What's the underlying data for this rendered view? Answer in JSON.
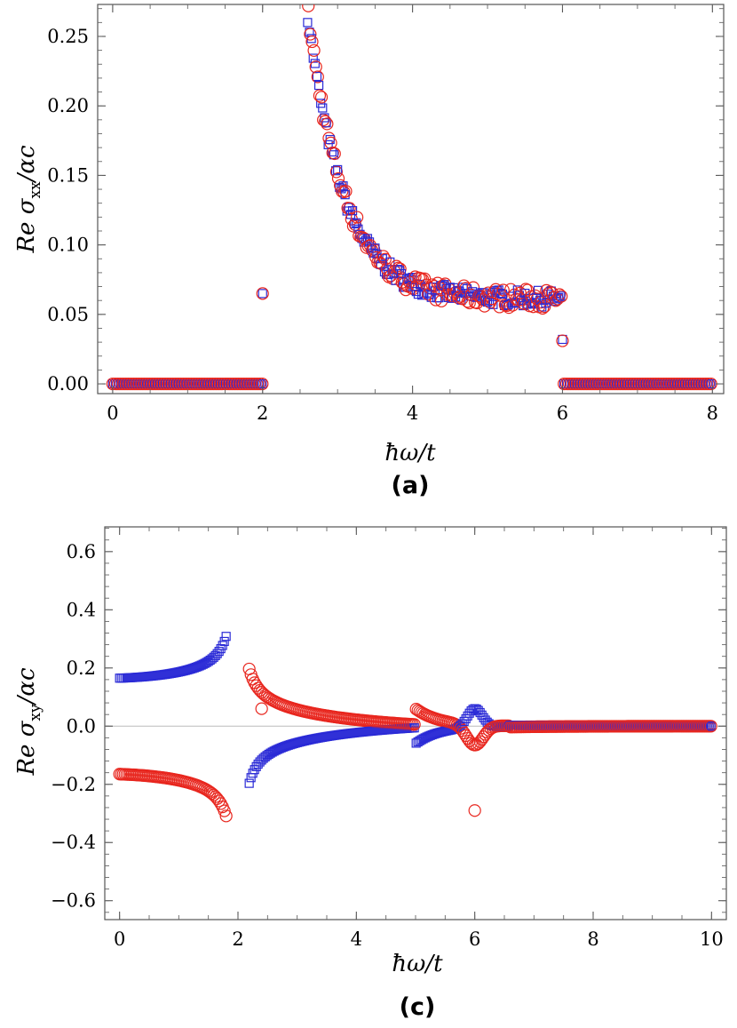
{
  "chart_data": [
    {
      "type": "scatter",
      "caption": "(a)",
      "title": "",
      "xlabel": "ħω/t",
      "ylabel_main": "Re σ",
      "ylabel_sub": "xx",
      "ylabel_tail": "/αc",
      "xlim": [
        -0.2,
        8.15
      ],
      "ylim": [
        -0.007,
        0.273
      ],
      "x_ticks": [
        "0",
        "2",
        "4",
        "6",
        "8"
      ],
      "y_ticks": [
        "0.00",
        "0.05",
        "0.10",
        "0.15",
        "0.20",
        "0.25"
      ],
      "series": [
        {
          "name": "blue squares",
          "marker": "square",
          "color": "#2a2ad6"
        },
        {
          "name": "red circles",
          "marker": "circle",
          "color": "#e8261e"
        }
      ],
      "features": {
        "band_lo": 2,
        "band_hi": 6,
        "edge_peak": 0.065,
        "plateau": 0.062,
        "tail_start": 2.6,
        "tail_peak": 0.265,
        "edge_drop": 0.032
      }
    },
    {
      "type": "scatter",
      "caption": "(c)",
      "title": "",
      "xlabel": "ħω/t",
      "ylabel_main": "Re σ",
      "ylabel_sub": "xy",
      "ylabel_tail": "/αc",
      "xlim": [
        -0.25,
        10.25
      ],
      "ylim": [
        -0.665,
        0.685
      ],
      "x_ticks": [
        "0",
        "2",
        "4",
        "6",
        "8",
        "10"
      ],
      "y_ticks": [
        "−0.6",
        "−0.4",
        "−0.2",
        "0.0",
        "0.2",
        "0.4",
        "0.6"
      ],
      "series": [
        {
          "name": "blue squares",
          "marker": "square",
          "color": "#2a2ad6"
        },
        {
          "name": "red circles",
          "marker": "circle",
          "color": "#e8261e"
        }
      ],
      "features": {
        "pole": 2.0,
        "low_level": 0.165,
        "peak_6": 0.065,
        "outlier_1": [
          2.4,
          0.06
        ],
        "outlier_2": [
          6.0,
          -0.29
        ]
      }
    }
  ]
}
